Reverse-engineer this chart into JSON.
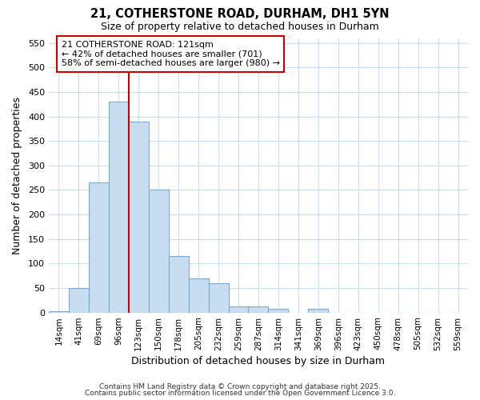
{
  "title1": "21, COTHERSTONE ROAD, DURHAM, DH1 5YN",
  "title2": "Size of property relative to detached houses in Durham",
  "xlabel": "Distribution of detached houses by size in Durham",
  "ylabel": "Number of detached properties",
  "bar_labels": [
    "14sqm",
    "41sqm",
    "69sqm",
    "96sqm",
    "123sqm",
    "150sqm",
    "178sqm",
    "205sqm",
    "232sqm",
    "259sqm",
    "287sqm",
    "314sqm",
    "341sqm",
    "369sqm",
    "396sqm",
    "423sqm",
    "450sqm",
    "478sqm",
    "505sqm",
    "532sqm",
    "559sqm"
  ],
  "bar_values": [
    2,
    50,
    265,
    430,
    390,
    250,
    115,
    70,
    60,
    13,
    13,
    8,
    0,
    7,
    0,
    0,
    0,
    0,
    0,
    0,
    0
  ],
  "bar_color": "#c8ddf0",
  "bar_edge_color": "#7aaad0",
  "red_line_color": "#cc0000",
  "annotation_text": "21 COTHERSTONE ROAD: 121sqm\n← 42% of detached houses are smaller (701)\n58% of semi-detached houses are larger (980) →",
  "annotation_box_color": "#ffffff",
  "annotation_box_edge": "#cc0000",
  "ylim": [
    0,
    560
  ],
  "yticks": [
    0,
    50,
    100,
    150,
    200,
    250,
    300,
    350,
    400,
    450,
    500,
    550
  ],
  "bg_color": "#ffffff",
  "grid_color": "#c8ddf0",
  "footer1": "Contains HM Land Registry data © Crown copyright and database right 2025.",
  "footer2": "Contains public sector information licensed under the Open Government Licence 3.0."
}
